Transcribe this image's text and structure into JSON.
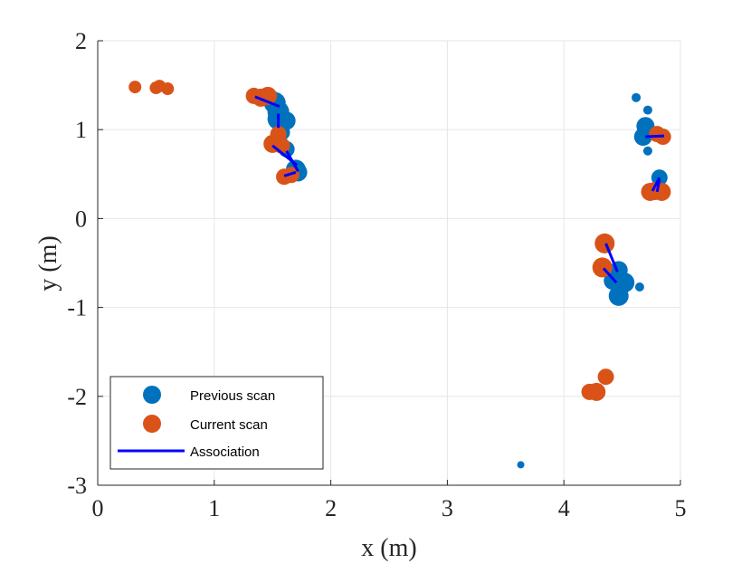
{
  "chart_data": {
    "type": "scatter",
    "xlabel": "x (m)",
    "ylabel": "y (m)",
    "xlim": [
      0,
      5
    ],
    "ylim": [
      -3,
      2
    ],
    "xticks": [
      0,
      1,
      2,
      3,
      4,
      5
    ],
    "yticks": [
      -3,
      -2,
      -1,
      0,
      1,
      2
    ],
    "xtick_labels": [
      "0",
      "1",
      "2",
      "3",
      "4",
      "5"
    ],
    "ytick_labels": [
      "-3",
      "-2",
      "-1",
      "0",
      "1",
      "2"
    ],
    "grid": true,
    "legend_position": "bottom-left",
    "legend": [
      "Previous scan",
      "Current scan",
      "Association"
    ],
    "colors": {
      "previous": "#0072bd",
      "current": "#d95319",
      "association": "#0000ff",
      "grid": "#e6e6e6",
      "axis": "#262626"
    },
    "series": [
      {
        "name": "Previous scan",
        "kind": "points",
        "points": [
          {
            "x": 1.52,
            "y": 1.3,
            "s": 12
          },
          {
            "x": 1.48,
            "y": 1.35,
            "s": 10
          },
          {
            "x": 1.55,
            "y": 1.2,
            "s": 12
          },
          {
            "x": 1.62,
            "y": 1.1,
            "s": 10
          },
          {
            "x": 1.55,
            "y": 1.12,
            "s": 12
          },
          {
            "x": 1.58,
            "y": 0.97,
            "s": 9
          },
          {
            "x": 1.62,
            "y": 0.78,
            "s": 9
          },
          {
            "x": 1.7,
            "y": 0.55,
            "s": 11
          },
          {
            "x": 1.72,
            "y": 0.52,
            "s": 10
          },
          {
            "x": 4.62,
            "y": 1.36,
            "s": 5
          },
          {
            "x": 4.72,
            "y": 1.22,
            "s": 5
          },
          {
            "x": 4.7,
            "y": 1.04,
            "s": 10
          },
          {
            "x": 4.68,
            "y": 0.92,
            "s": 10
          },
          {
            "x": 4.72,
            "y": 0.76,
            "s": 5
          },
          {
            "x": 4.82,
            "y": 0.46,
            "s": 9
          },
          {
            "x": 4.45,
            "y": -0.62,
            "s": 10
          },
          {
            "x": 4.47,
            "y": -0.58,
            "s": 10
          },
          {
            "x": 4.52,
            "y": -0.72,
            "s": 11
          },
          {
            "x": 4.42,
            "y": -0.7,
            "s": 10
          },
          {
            "x": 4.47,
            "y": -0.87,
            "s": 11
          },
          {
            "x": 4.65,
            "y": -0.77,
            "s": 5
          },
          {
            "x": 3.63,
            "y": -2.77,
            "s": 4
          }
        ]
      },
      {
        "name": "Current scan",
        "kind": "points",
        "points": [
          {
            "x": 0.32,
            "y": 1.48,
            "s": 7
          },
          {
            "x": 0.5,
            "y": 1.47,
            "s": 7
          },
          {
            "x": 0.53,
            "y": 1.49,
            "s": 7
          },
          {
            "x": 0.6,
            "y": 1.46,
            "s": 7
          },
          {
            "x": 1.34,
            "y": 1.38,
            "s": 9
          },
          {
            "x": 1.4,
            "y": 1.36,
            "s": 10
          },
          {
            "x": 1.46,
            "y": 1.38,
            "s": 10
          },
          {
            "x": 1.55,
            "y": 0.95,
            "s": 9
          },
          {
            "x": 1.5,
            "y": 0.84,
            "s": 10
          },
          {
            "x": 1.58,
            "y": 0.82,
            "s": 9
          },
          {
            "x": 1.6,
            "y": 0.47,
            "s": 9
          },
          {
            "x": 1.66,
            "y": 0.49,
            "s": 9
          },
          {
            "x": 4.8,
            "y": 0.95,
            "s": 9
          },
          {
            "x": 4.85,
            "y": 0.92,
            "s": 9
          },
          {
            "x": 4.74,
            "y": 0.3,
            "s": 10
          },
          {
            "x": 4.78,
            "y": 0.31,
            "s": 10
          },
          {
            "x": 4.84,
            "y": 0.3,
            "s": 10
          },
          {
            "x": 4.35,
            "y": -0.28,
            "s": 11
          },
          {
            "x": 4.33,
            "y": -0.55,
            "s": 11
          },
          {
            "x": 4.36,
            "y": -1.78,
            "s": 9
          },
          {
            "x": 4.22,
            "y": -1.95,
            "s": 9
          },
          {
            "x": 4.28,
            "y": -1.95,
            "s": 10
          }
        ]
      },
      {
        "name": "Association",
        "kind": "segments",
        "segments": [
          {
            "x1": 1.35,
            "y1": 1.37,
            "x2": 1.56,
            "y2": 1.26
          },
          {
            "x1": 1.55,
            "y1": 1.02,
            "x2": 1.55,
            "y2": 1.18
          },
          {
            "x1": 1.5,
            "y1": 0.82,
            "x2": 1.71,
            "y2": 0.6
          },
          {
            "x1": 1.62,
            "y1": 0.76,
            "x2": 1.72,
            "y2": 0.53
          },
          {
            "x1": 1.6,
            "y1": 0.48,
            "x2": 1.7,
            "y2": 0.52
          },
          {
            "x1": 4.7,
            "y1": 0.92,
            "x2": 4.86,
            "y2": 0.93
          },
          {
            "x1": 4.76,
            "y1": 0.31,
            "x2": 4.82,
            "y2": 0.46
          },
          {
            "x1": 4.8,
            "y1": 0.3,
            "x2": 4.82,
            "y2": 0.44
          },
          {
            "x1": 4.36,
            "y1": -0.28,
            "x2": 4.46,
            "y2": -0.6
          },
          {
            "x1": 4.34,
            "y1": -0.56,
            "x2": 4.45,
            "y2": -0.72
          }
        ]
      }
    ]
  }
}
